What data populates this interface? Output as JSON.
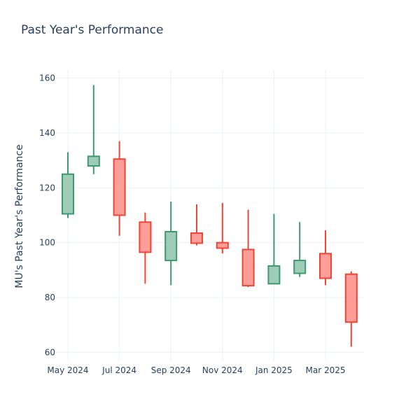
{
  "chart_data": {
    "type": "candlestick",
    "title": "Past Year's Performance",
    "ylabel": "MU's Past Year's Performance",
    "xlabel": "",
    "ylim": [
      57,
      163
    ],
    "y_ticks": [
      60,
      80,
      100,
      120,
      140,
      160
    ],
    "x_ticks": [
      {
        "label": "May 2024",
        "month": 0
      },
      {
        "label": "Jul 2024",
        "month": 2
      },
      {
        "label": "Sep 2024",
        "month": 4
      },
      {
        "label": "Nov 2024",
        "month": 6
      },
      {
        "label": "Jan 2025",
        "month": 8
      },
      {
        "label": "Mar 2025",
        "month": 10
      }
    ],
    "grid": true,
    "increasing_color": "#3d9970",
    "increasing_fill": "#9fccb8",
    "decreasing_color": "#f04434",
    "decreasing_fill": "#ff9e99",
    "candles": [
      {
        "month": 0,
        "open": 110.5,
        "high": 133.0,
        "low": 109.0,
        "close": 125.0
      },
      {
        "month": 1,
        "open": 128.0,
        "high": 157.5,
        "low": 125.0,
        "close": 131.5
      },
      {
        "month": 2,
        "open": 130.5,
        "high": 137.0,
        "low": 102.5,
        "close": 110.0
      },
      {
        "month": 3,
        "open": 107.5,
        "high": 111.0,
        "low": 85.0,
        "close": 96.5
      },
      {
        "month": 4,
        "open": 93.5,
        "high": 115.0,
        "low": 84.5,
        "close": 104.0
      },
      {
        "month": 5,
        "open": 103.5,
        "high": 114.0,
        "low": 99.0,
        "close": 99.8
      },
      {
        "month": 6,
        "open": 100.0,
        "high": 114.5,
        "low": 96.0,
        "close": 98.0
      },
      {
        "month": 7,
        "open": 97.5,
        "high": 112.0,
        "low": 83.8,
        "close": 84.3
      },
      {
        "month": 8,
        "open": 85.0,
        "high": 110.5,
        "low": 85.0,
        "close": 91.5
      },
      {
        "month": 9,
        "open": 88.8,
        "high": 107.5,
        "low": 87.5,
        "close": 93.5
      },
      {
        "month": 10,
        "open": 96.0,
        "high": 104.5,
        "low": 84.5,
        "close": 87.0
      },
      {
        "month": 11,
        "open": 88.5,
        "high": 89.5,
        "low": 62.0,
        "close": 71.0
      }
    ]
  }
}
